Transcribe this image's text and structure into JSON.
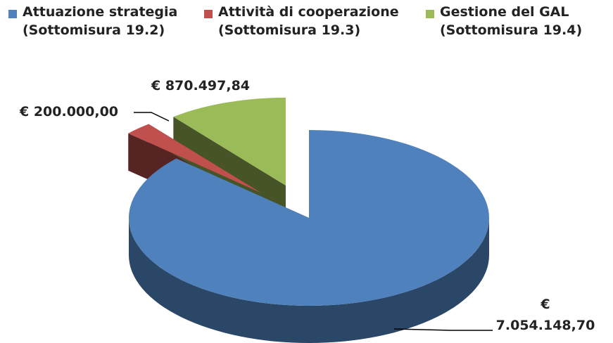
{
  "chart_data": {
    "type": "pie",
    "categories": [
      "Attuazione strategia (Sottomisura 19.2)",
      "Attività di cooperazione (Sottomisura 19.3)",
      "Gestione del GAL (Sottomisura 19.4)"
    ],
    "values": [
      7054148.7,
      200000.0,
      870497.84
    ],
    "value_labels": [
      "€ 7.054.148,70",
      "€ 200.000,00",
      "€ 870.497,84"
    ],
    "colors": [
      "#4f81bd",
      "#c0504d",
      "#9bbb59"
    ],
    "legend": "top"
  }
}
